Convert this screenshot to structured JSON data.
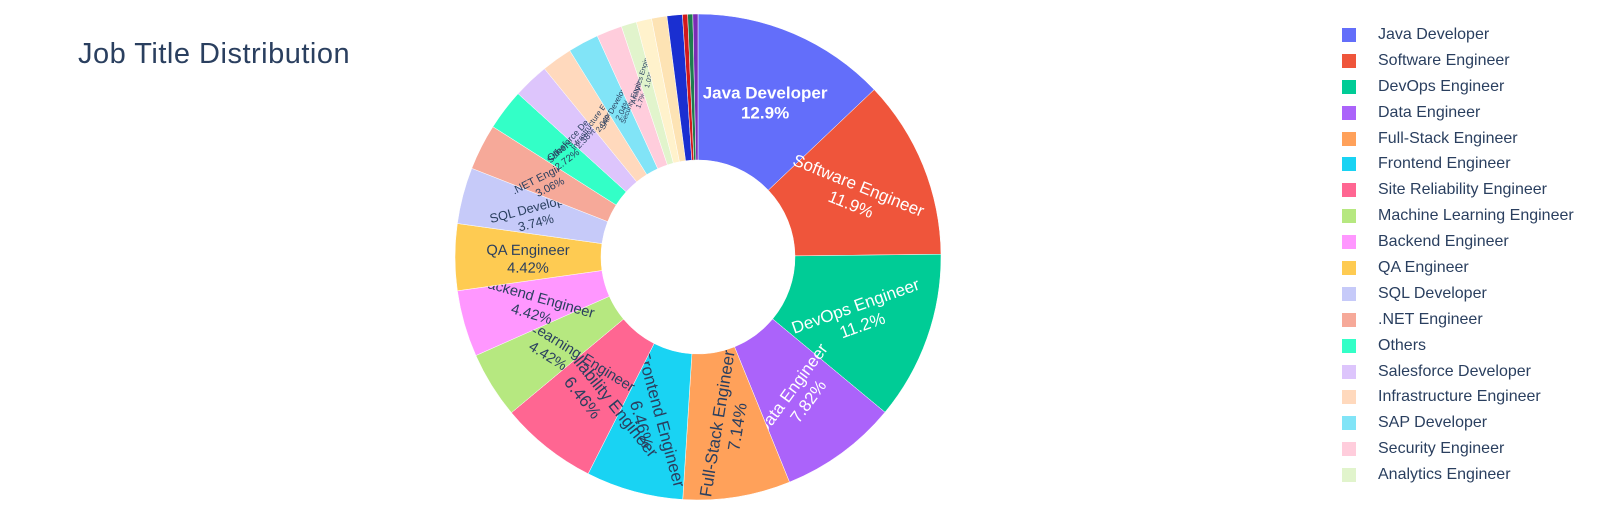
{
  "chart_data": {
    "type": "pie",
    "hole": true,
    "title": "Job Title Distribution",
    "legend_position": "right",
    "slices": [
      {
        "label": "Java Developer",
        "value": 12.9,
        "display": "12.9%",
        "color": "#636efa",
        "legend": true
      },
      {
        "label": "Software Engineer",
        "value": 11.9,
        "display": "11.9%",
        "color": "#ef553b",
        "legend": true
      },
      {
        "label": "DevOps Engineer",
        "value": 11.2,
        "display": "11.2%",
        "color": "#00cc96",
        "legend": true
      },
      {
        "label": "Data Engineer",
        "value": 7.82,
        "display": "7.82%",
        "color": "#ab63fa",
        "legend": true
      },
      {
        "label": "Full-Stack Engineer",
        "value": 7.14,
        "display": "7.14%",
        "color": "#ffa15a",
        "legend": true
      },
      {
        "label": "Frontend Engineer",
        "value": 6.46,
        "display": "6.46%",
        "color": "#19d3f3",
        "legend": true
      },
      {
        "label": "Site Reliability Engineer",
        "value": 6.46,
        "display": "6.46%",
        "color": "#ff6692",
        "legend": true
      },
      {
        "label": "Machine Learning Engineer",
        "value": 4.42,
        "display": "4.42%",
        "color": "#b6e880",
        "legend": true
      },
      {
        "label": "Backend Engineer",
        "value": 4.42,
        "display": "4.42%",
        "color": "#ff97ff",
        "legend": true
      },
      {
        "label": "QA Engineer",
        "value": 4.42,
        "display": "4.42%",
        "color": "#fecb52",
        "legend": true
      },
      {
        "label": "SQL Developer",
        "value": 3.74,
        "display": "3.74%",
        "color": "#c6caf9",
        "legend": true
      },
      {
        "label": ".NET Engineer",
        "value": 3.06,
        "display": "3.06%",
        "color": "#f6a999",
        "legend": true
      },
      {
        "label": "Others",
        "value": 2.72,
        "display": "2.72%",
        "color": "#33ffc7",
        "legend": true
      },
      {
        "label": "Salesforce Developer",
        "value": 2.38,
        "display": "2.38%",
        "color": "#ddc5fc",
        "legend": true
      },
      {
        "label": "Infrastructure Engineer",
        "value": 2.04,
        "display": "2.04%",
        "color": "#ffd9bd",
        "legend": true
      },
      {
        "label": "SAP Developer",
        "value": 2.04,
        "display": "2.04%",
        "color": "#81e4f7",
        "legend": true
      },
      {
        "label": "Security Engineer",
        "value": 1.7,
        "display": "1.7%",
        "color": "#ffcddc",
        "legend": true
      },
      {
        "label": "Analytics Engineer",
        "value": 1.02,
        "display": "1.02%",
        "color": "#e1f4cc",
        "legend": true
      },
      {
        "label": "",
        "value": 1.02,
        "display": "",
        "color": "#fff2cc",
        "legend": false
      },
      {
        "label": "",
        "value": 1.02,
        "display": "",
        "color": "#fde3b4",
        "legend": false
      },
      {
        "label": "",
        "value": 1.02,
        "display": "",
        "color": "#1a2fd1",
        "legend": false
      },
      {
        "label": "",
        "value": 0.34,
        "display": "",
        "color": "#d2191c",
        "legend": false
      },
      {
        "label": "",
        "value": 0.34,
        "display": "",
        "color": "#1e7d4f",
        "legend": false
      },
      {
        "label": "",
        "value": 0.34,
        "display": "",
        "color": "#7a2bb6",
        "legend": false
      }
    ]
  }
}
